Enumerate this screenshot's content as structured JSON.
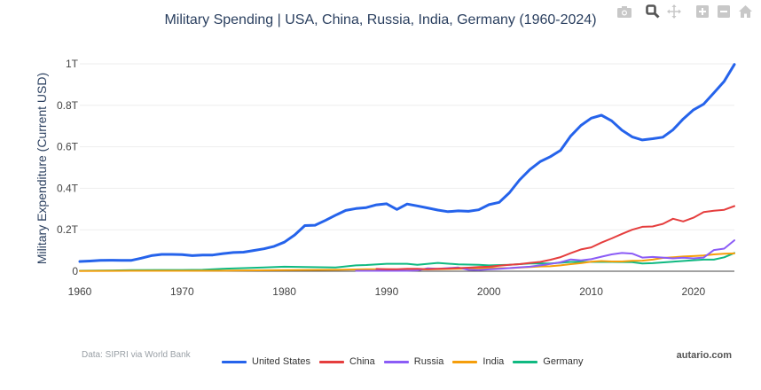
{
  "modebar": {
    "buttons": [
      {
        "name": "camera-icon",
        "label": "Download plot as png"
      },
      {
        "name": "zoom-icon",
        "label": "Zoom"
      },
      {
        "name": "pan-icon",
        "label": "Pan"
      },
      {
        "name": "zoom-in-icon",
        "label": "Zoom in"
      },
      {
        "name": "zoom-out-icon",
        "label": "Zoom out"
      },
      {
        "name": "home-icon",
        "label": "Reset axes"
      }
    ]
  },
  "footer": {
    "source": "Data: SIPRI via World Bank",
    "brand": "autario.com"
  },
  "chart_data": {
    "type": "line",
    "title": "Military Spending | USA, China, Russia, India, Germany (1960-2024)",
    "xlabel": "",
    "ylabel": "Military Expenditure (Current USD)",
    "xlim": [
      1960,
      2024
    ],
    "ylim": [
      0,
      1.0
    ],
    "y_unit": "trillion USD",
    "x_ticks": [
      "1960",
      "1970",
      "1980",
      "1990",
      "2000",
      "2010",
      "2020"
    ],
    "x_tick_values": [
      1960,
      1970,
      1980,
      1990,
      2000,
      2010,
      2020
    ],
    "y_ticks": [
      "0",
      "0.2T",
      "0.4T",
      "0.6T",
      "0.8T",
      "1T"
    ],
    "y_tick_values": [
      0,
      0.2,
      0.4,
      0.6,
      0.8,
      1.0
    ],
    "grid": true,
    "legend_position": "bottom-center",
    "series": [
      {
        "name": "United States",
        "color": "#2563eb",
        "x": [
          1960,
          1961,
          1962,
          1963,
          1964,
          1965,
          1966,
          1967,
          1968,
          1969,
          1970,
          1971,
          1972,
          1973,
          1974,
          1975,
          1976,
          1977,
          1978,
          1979,
          1980,
          1981,
          1982,
          1983,
          1984,
          1985,
          1986,
          1987,
          1988,
          1989,
          1990,
          1991,
          1992,
          1993,
          1994,
          1995,
          1996,
          1997,
          1998,
          1999,
          2000,
          2001,
          2002,
          2003,
          2004,
          2005,
          2006,
          2007,
          2008,
          2009,
          2010,
          2011,
          2012,
          2013,
          2014,
          2015,
          2016,
          2017,
          2018,
          2019,
          2020,
          2021,
          2022,
          2023,
          2024
        ],
        "values": [
          0.047,
          0.049,
          0.052,
          0.053,
          0.052,
          0.052,
          0.063,
          0.075,
          0.081,
          0.081,
          0.08,
          0.075,
          0.078,
          0.078,
          0.085,
          0.09,
          0.092,
          0.1,
          0.108,
          0.12,
          0.14,
          0.175,
          0.22,
          0.222,
          0.245,
          0.27,
          0.293,
          0.302,
          0.307,
          0.32,
          0.325,
          0.298,
          0.324,
          0.315,
          0.305,
          0.295,
          0.287,
          0.291,
          0.289,
          0.296,
          0.321,
          0.332,
          0.378,
          0.44,
          0.49,
          0.528,
          0.552,
          0.583,
          0.652,
          0.703,
          0.738,
          0.752,
          0.725,
          0.68,
          0.648,
          0.633,
          0.639,
          0.646,
          0.682,
          0.734,
          0.778,
          0.806,
          0.86,
          0.916,
          0.997
        ]
      },
      {
        "name": "China",
        "color": "#e53e3e",
        "x": [
          1989,
          1990,
          1991,
          1992,
          1993,
          1994,
          1995,
          1996,
          1997,
          1998,
          1999,
          2000,
          2001,
          2002,
          2003,
          2004,
          2005,
          2006,
          2007,
          2008,
          2009,
          2010,
          2011,
          2012,
          2013,
          2014,
          2015,
          2016,
          2017,
          2018,
          2019,
          2020,
          2021,
          2022,
          2023,
          2024
        ],
        "values": [
          0.011,
          0.01,
          0.01,
          0.012,
          0.012,
          0.01,
          0.012,
          0.013,
          0.015,
          0.017,
          0.02,
          0.022,
          0.027,
          0.031,
          0.034,
          0.04,
          0.045,
          0.055,
          0.068,
          0.087,
          0.105,
          0.115,
          0.138,
          0.158,
          0.18,
          0.2,
          0.214,
          0.216,
          0.228,
          0.253,
          0.24,
          0.258,
          0.285,
          0.292,
          0.296,
          0.314
        ]
      },
      {
        "name": "Russia",
        "color": "#8b5cf6",
        "x": [
          1987,
          1988,
          1989,
          1990,
          1991,
          1992,
          1993,
          1994,
          1995,
          1996,
          1997,
          1998,
          1999,
          2000,
          2001,
          2002,
          2003,
          2004,
          2005,
          2006,
          2007,
          2008,
          2009,
          2010,
          2011,
          2012,
          2013,
          2014,
          2015,
          2016,
          2017,
          2018,
          2019,
          2020,
          2021,
          2022,
          2023,
          2024
        ],
        "values": [
          0.002,
          0.002,
          0.002,
          0.002,
          0.002,
          0.002,
          0.004,
          0.014,
          0.012,
          0.015,
          0.018,
          0.007,
          0.006,
          0.009,
          0.012,
          0.015,
          0.019,
          0.022,
          0.028,
          0.035,
          0.043,
          0.057,
          0.052,
          0.058,
          0.07,
          0.081,
          0.088,
          0.085,
          0.066,
          0.069,
          0.066,
          0.062,
          0.065,
          0.062,
          0.066,
          0.102,
          0.109,
          0.149
        ]
      },
      {
        "name": "India",
        "color": "#f59e0b",
        "x": [
          1960,
          1965,
          1970,
          1975,
          1980,
          1985,
          1988,
          1990,
          1992,
          1995,
          1998,
          2000,
          2002,
          2004,
          2005,
          2006,
          2007,
          2008,
          2009,
          2010,
          2011,
          2012,
          2013,
          2014,
          2015,
          2016,
          2017,
          2018,
          2019,
          2020,
          2021,
          2022,
          2023,
          2024
        ],
        "values": [
          0.001,
          0.002,
          0.002,
          0.003,
          0.005,
          0.007,
          0.01,
          0.01,
          0.008,
          0.01,
          0.013,
          0.015,
          0.015,
          0.02,
          0.023,
          0.024,
          0.028,
          0.034,
          0.039,
          0.046,
          0.049,
          0.047,
          0.047,
          0.05,
          0.051,
          0.056,
          0.064,
          0.067,
          0.071,
          0.073,
          0.076,
          0.081,
          0.084,
          0.086
        ]
      },
      {
        "name": "Germany",
        "color": "#10b981",
        "x": [
          1960,
          1962,
          1965,
          1968,
          1970,
          1972,
          1974,
          1976,
          1978,
          1980,
          1982,
          1985,
          1987,
          1988,
          1990,
          1992,
          1993,
          1995,
          1997,
          1999,
          2000,
          2002,
          2004,
          2005,
          2006,
          2008,
          2010,
          2012,
          2014,
          2015,
          2016,
          2018,
          2020,
          2021,
          2022,
          2023,
          2024
        ],
        "values": [
          0.002,
          0.003,
          0.005,
          0.006,
          0.006,
          0.007,
          0.012,
          0.015,
          0.018,
          0.022,
          0.02,
          0.018,
          0.028,
          0.03,
          0.036,
          0.036,
          0.031,
          0.04,
          0.033,
          0.031,
          0.028,
          0.031,
          0.037,
          0.038,
          0.037,
          0.045,
          0.045,
          0.045,
          0.044,
          0.037,
          0.039,
          0.046,
          0.053,
          0.056,
          0.056,
          0.067,
          0.088
        ]
      }
    ]
  }
}
